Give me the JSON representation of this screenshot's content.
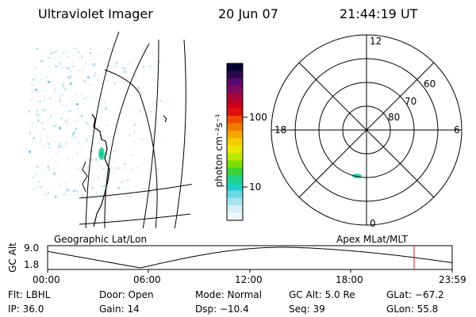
{
  "header": {
    "instrument": "Ultraviolet Imager",
    "date": "20 Jun 07",
    "time": "21:44:19 UT"
  },
  "colorbar": {
    "label": "photon cm⁻²s⁻¹",
    "ticks": [
      "100",
      "10"
    ],
    "colors": [
      "#000033",
      "#2a0a4a",
      "#5a0a6e",
      "#800a5a",
      "#a8063a",
      "#c8001e",
      "#e01010",
      "#f04a00",
      "#f07a00",
      "#f5a500",
      "#f5cc00",
      "#e8e800",
      "#b8e800",
      "#7ae000",
      "#3ad33a",
      "#1ed28a",
      "#1ecfc8",
      "#6ad8e6",
      "#a6e4ee",
      "#d6eff4",
      "#eef6f8"
    ]
  },
  "polar": {
    "top_label": "12",
    "bottom_label": "0",
    "left_label": "18",
    "right_label": "6",
    "ring_labels": [
      "60",
      "70",
      "80"
    ]
  },
  "panels": {
    "left_caption": "Geographic Lat/Lon",
    "right_caption": "Apex MLat/MLT"
  },
  "altitude_plot": {
    "axis_label": "GC Alt",
    "y_ticks": [
      "9.0",
      "1.8"
    ],
    "x_ticks": [
      "00:00",
      "06:00",
      "12:00",
      "18:00",
      "23:59"
    ],
    "current_time_hours": 21.74,
    "marker_color": "#d02020"
  },
  "footer": {
    "flt": "Flt: LBHL",
    "door": "Door: Open",
    "mode": "Mode: Normal",
    "gcalt": "GC Alt: 5.0 Re",
    "glat": "GLat: −67.2",
    "ip": "IP: 36.0",
    "gain": "Gain: 14",
    "dsp": "Dsp:  −10.4",
    "seq": "Seq: 39",
    "glon": "GLon:  55.8"
  }
}
